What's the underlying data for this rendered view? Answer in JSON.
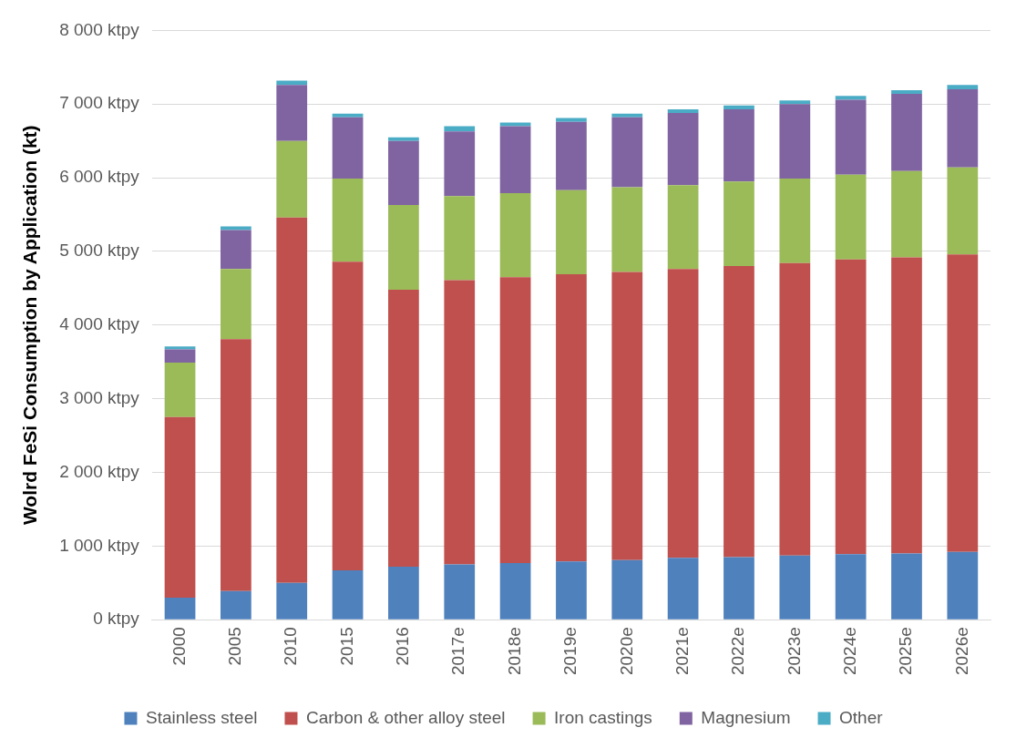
{
  "chart_data": {
    "type": "bar",
    "stacked": true,
    "ylabel": "Wolrd FeSi Consumption by Application (kt)",
    "categories": [
      "2000",
      "2005",
      "2010",
      "2015",
      "2016",
      "2017e",
      "2018e",
      "2019e",
      "2020e",
      "2021e",
      "2022e",
      "2023e",
      "2024e",
      "2025e",
      "2026e"
    ],
    "series": [
      {
        "name": "Stainless steel",
        "color": "#4f81bd",
        "values": [
          300,
          390,
          500,
          670,
          720,
          750,
          770,
          790,
          810,
          840,
          850,
          870,
          890,
          900,
          920
        ]
      },
      {
        "name": "Carbon & other alloy steel",
        "color": "#c0504d",
        "values": [
          2450,
          3420,
          4960,
          4190,
          3760,
          3860,
          3880,
          3900,
          3910,
          3920,
          3950,
          3970,
          4000,
          4020,
          4040
        ]
      },
      {
        "name": "Iron castings",
        "color": "#9bbb59",
        "values": [
          740,
          950,
          1040,
          1130,
          1150,
          1140,
          1140,
          1140,
          1150,
          1140,
          1150,
          1150,
          1150,
          1170,
          1180
        ]
      },
      {
        "name": "Magnesium",
        "color": "#8064a2",
        "values": [
          180,
          530,
          760,
          830,
          870,
          880,
          910,
          930,
          950,
          980,
          980,
          1010,
          1020,
          1050,
          1060
        ]
      },
      {
        "name": "Other",
        "color": "#4bacc6",
        "values": [
          40,
          50,
          60,
          50,
          50,
          70,
          50,
          50,
          50,
          50,
          50,
          50,
          50,
          50,
          60
        ]
      }
    ],
    "ylim": [
      0,
      8000
    ],
    "yticks": [
      {
        "value": 0,
        "label": "0 ktpy"
      },
      {
        "value": 1000,
        "label": "1 000 ktpy"
      },
      {
        "value": 2000,
        "label": "2 000 ktpy"
      },
      {
        "value": 3000,
        "label": "3 000 ktpy"
      },
      {
        "value": 4000,
        "label": "4 000 ktpy"
      },
      {
        "value": 5000,
        "label": "5 000 ktpy"
      },
      {
        "value": 6000,
        "label": "6 000 ktpy"
      },
      {
        "value": 7000,
        "label": "7 000 ktpy"
      },
      {
        "value": 8000,
        "label": "8 000 ktpy"
      }
    ],
    "grid": "y",
    "legend": "bottom"
  }
}
